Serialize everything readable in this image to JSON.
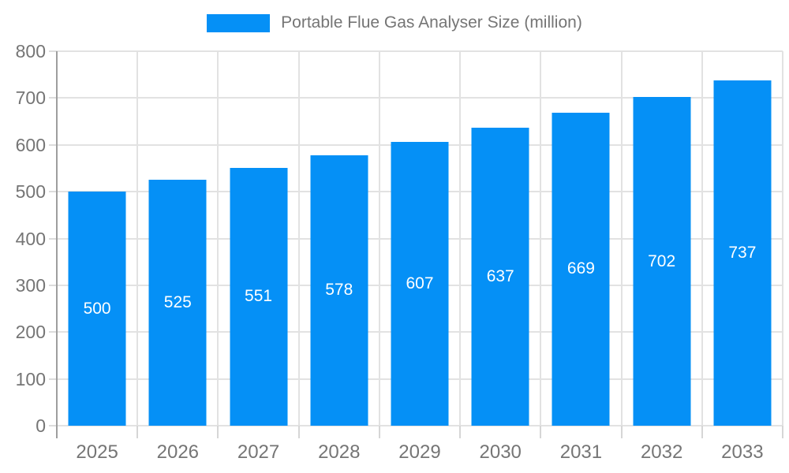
{
  "chart_data": {
    "type": "bar",
    "title": "Portable Flue Gas Analyser Size (million)",
    "categories": [
      "2025",
      "2026",
      "2027",
      "2028",
      "2029",
      "2030",
      "2031",
      "2032",
      "2033"
    ],
    "values": [
      500,
      525,
      551,
      578,
      607,
      637,
      669,
      702,
      737
    ],
    "xlabel": "",
    "ylabel": "",
    "ylim": [
      0,
      800
    ],
    "yticks": [
      0,
      100,
      200,
      300,
      400,
      500,
      600,
      700,
      800
    ],
    "grid": true,
    "legend_position": "top-center",
    "bar_color": "#0590f6",
    "bar_value_label_color": "#ffffff",
    "axis_text_color": "#757575",
    "gridline_color": "#e2e2e2",
    "axis_line_color": "#9e9e9e"
  }
}
